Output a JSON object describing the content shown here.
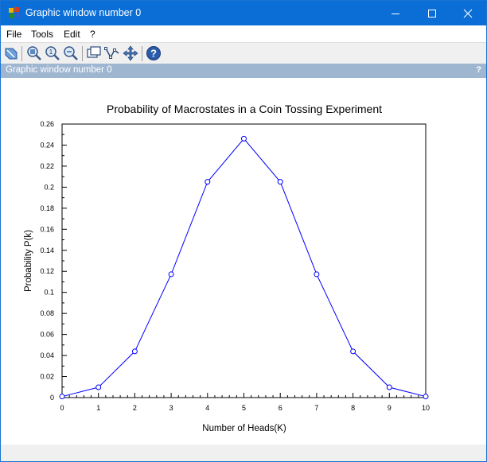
{
  "window": {
    "title": "Graphic window number 0",
    "controls": [
      "minimize",
      "maximize",
      "close"
    ]
  },
  "menu": {
    "items": [
      "File",
      "Tools",
      "Edit",
      "?"
    ]
  },
  "toolbar": {
    "icons": [
      "rotate-icon",
      "zoom-in-icon",
      "zoom-original-icon",
      "zoom-out-icon",
      "datatip-icon",
      "edit-curve-icon",
      "pan-icon",
      "help-icon"
    ]
  },
  "panel": {
    "title": "Graphic window number 0",
    "help": "?"
  },
  "colors": {
    "titlebar": "#0a6ed6",
    "panelbar": "#9fb6d1",
    "series": "#0000ff"
  },
  "chart_data": {
    "type": "line",
    "title": "Probability of Macrostates in a Coin Tossing Experiment",
    "xlabel": "Number of Heads(K)",
    "ylabel": "Probability P(k)",
    "xlim": [
      0,
      10
    ],
    "ylim": [
      0,
      0.26
    ],
    "x_ticks": [
      "0",
      "1",
      "2",
      "3",
      "4",
      "5",
      "6",
      "7",
      "8",
      "9",
      "10"
    ],
    "y_ticks": [
      "0",
      "0.02",
      "0.04",
      "0.06",
      "0.08",
      "0.1",
      "0.12",
      "0.14",
      "0.16",
      "0.18",
      "0.2",
      "0.22",
      "0.24",
      "0.26"
    ],
    "grid": false,
    "series": [
      {
        "color": "#0000ff",
        "marker": "circle",
        "x": [
          0,
          1,
          2,
          3,
          4,
          5,
          6,
          7,
          8,
          9,
          10
        ],
        "values": [
          0.001,
          0.0098,
          0.0439,
          0.1172,
          0.2051,
          0.2461,
          0.2051,
          0.1172,
          0.0439,
          0.0098,
          0.001
        ]
      }
    ]
  }
}
